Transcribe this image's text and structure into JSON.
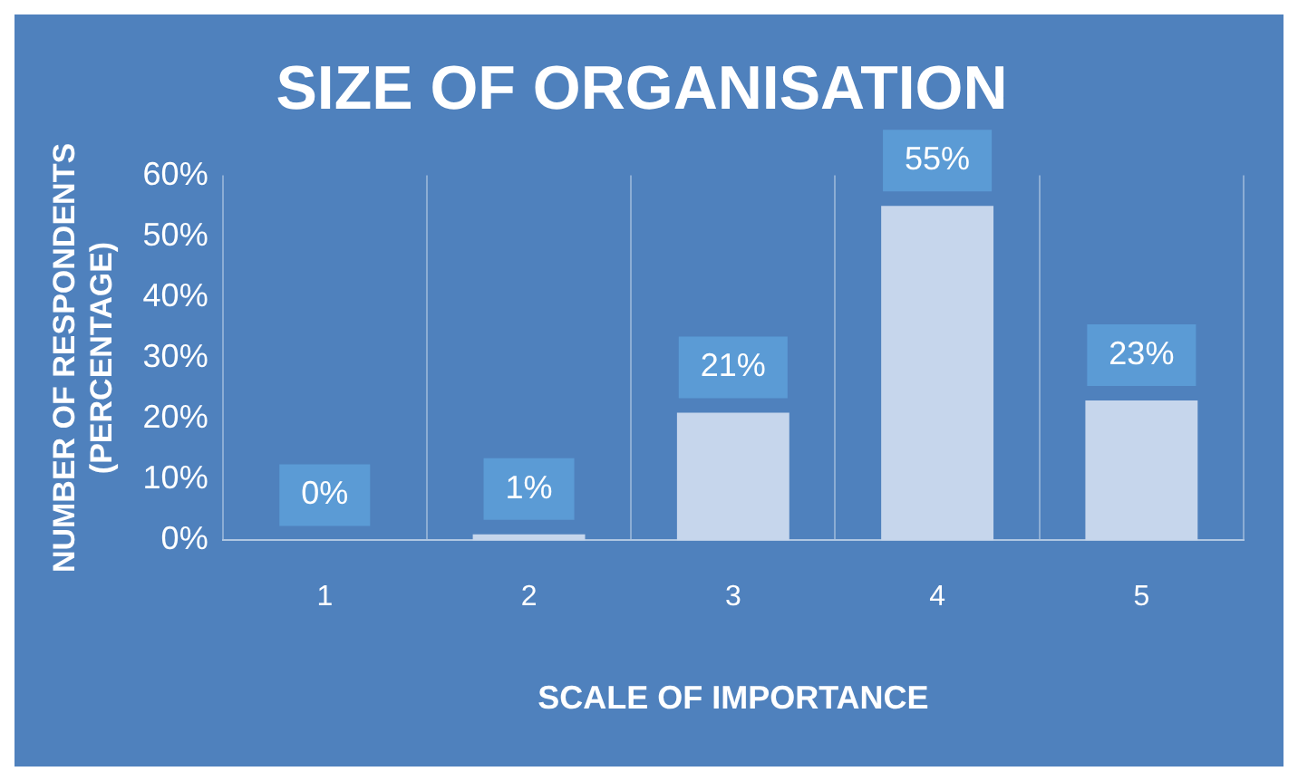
{
  "chart_data": {
    "type": "bar",
    "title": "SIZE OF ORGANISATION",
    "xlabel": "SCALE OF IMPORTANCE",
    "ylabel": "NUMBER OF RESPONDENTS (PERCENTAGE)",
    "categories": [
      "1",
      "2",
      "3",
      "4",
      "5"
    ],
    "values": [
      0,
      1,
      21,
      55,
      23
    ],
    "value_labels": [
      "0%",
      "1%",
      "21%",
      "55%",
      "23%"
    ],
    "color": "#c6d6ec",
    "ylim": [
      0,
      60
    ],
    "yticks": [
      {
        "value": 0,
        "label": "0%"
      },
      {
        "value": 10,
        "label": "10%"
      },
      {
        "value": 20,
        "label": "20%"
      },
      {
        "value": 30,
        "label": "30%"
      },
      {
        "value": 40,
        "label": "40%"
      },
      {
        "value": 50,
        "label": "50%"
      },
      {
        "value": 60,
        "label": "60%"
      }
    ],
    "grid": "x",
    "legend": false
  }
}
